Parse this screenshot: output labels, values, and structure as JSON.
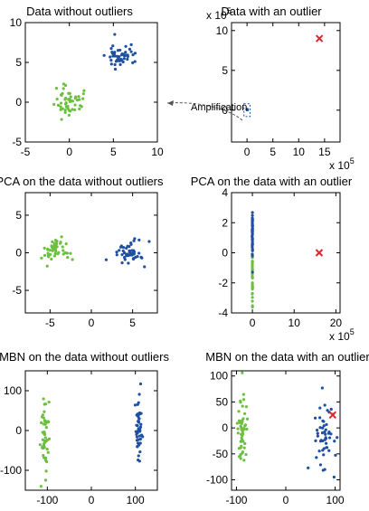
{
  "colors": {
    "green": "#6cbf3f",
    "blue": "#1f4fa0",
    "red": "#e0262c"
  },
  "annotation": {
    "text": "Amplification"
  },
  "chart_data": [
    {
      "type": "scatter",
      "title": "Data without outliers",
      "xlim": [
        -5,
        10
      ],
      "ylim": [
        -5,
        10
      ],
      "xticks": [
        -5,
        0,
        5,
        10
      ],
      "yticks": [
        -5,
        0,
        5,
        10
      ],
      "xtick_labels": [
        "-5",
        "0",
        "5",
        "10"
      ],
      "ytick_labels": [
        "-5",
        "0",
        "5",
        "10"
      ],
      "series": [
        {
          "color": "green",
          "cx": 0,
          "cy": 0,
          "sx": 0.8,
          "sy": 0.9,
          "n": 50
        },
        {
          "color": "blue",
          "cx": 5.8,
          "cy": 5.8,
          "sx": 0.8,
          "sy": 0.9,
          "n": 50
        }
      ]
    },
    {
      "type": "scatter",
      "title": "Data with an outlier",
      "x_exponent": "x 10",
      "x_exponent_power": "5",
      "y_exponent": "x 10",
      "y_exponent_power": "5",
      "xlim": [
        -3,
        18
      ],
      "ylim": [
        -4,
        11
      ],
      "xticks": [
        0,
        5,
        10,
        15
      ],
      "yticks": [
        0,
        5,
        10
      ],
      "xtick_labels": [
        "0",
        "5",
        "10",
        "15"
      ],
      "ytick_labels": [
        "0",
        "5",
        "10"
      ],
      "series": [
        {
          "color": "blue",
          "cx": 0.05,
          "cy": 0.05,
          "sx": 0.03,
          "sy": 0.03,
          "n": 8
        }
      ],
      "outlier": {
        "x": 14,
        "y": 9
      },
      "inset_box": {
        "x": [
          -0.6,
          0.6
        ],
        "y": [
          -0.8,
          0.8
        ]
      }
    },
    {
      "type": "scatter",
      "title": "PCA on the data without outliers",
      "xlim": [
        -8,
        8
      ],
      "ylim": [
        -8,
        8
      ],
      "xticks": [
        -5,
        0,
        5
      ],
      "yticks": [
        -5,
        0,
        5
      ],
      "xtick_labels": [
        "-5",
        "0",
        "5"
      ],
      "ytick_labels": [
        "-5",
        "0",
        "5"
      ],
      "series": [
        {
          "color": "green",
          "cx": -4.2,
          "cy": 0,
          "sx": 0.9,
          "sy": 0.9,
          "n": 50
        },
        {
          "color": "blue",
          "cx": 4.5,
          "cy": 0,
          "sx": 0.9,
          "sy": 0.9,
          "n": 50
        }
      ]
    },
    {
      "type": "scatter",
      "title": "PCA on the data with an outlier",
      "x_exponent": "x 10",
      "x_exponent_power": "5",
      "xlim": [
        -5,
        21
      ],
      "ylim": [
        -4,
        4
      ],
      "xticks": [
        0,
        10,
        20
      ],
      "yticks": [
        -4,
        -2,
        0,
        2,
        4
      ],
      "xtick_labels": [
        "0",
        "10",
        "20"
      ],
      "ytick_labels": [
        "-4",
        "-2",
        "0",
        "2",
        "4"
      ],
      "series": [
        {
          "color": "green",
          "cx": 0,
          "cy": -1.6,
          "sx": 0.02,
          "sy": 0.9,
          "n": 30
        },
        {
          "color": "blue",
          "cx": 0,
          "cy": 1.2,
          "sx": 0.02,
          "sy": 0.9,
          "n": 50
        }
      ],
      "outlier": {
        "x": 16,
        "y": 0
      }
    },
    {
      "type": "scatter",
      "title": "MBN on the data without outliers",
      "xlim": [
        -150,
        150
      ],
      "ylim": [
        -150,
        150
      ],
      "xticks": [
        -100,
        0,
        100
      ],
      "yticks": [
        -100,
        0,
        100
      ],
      "xtick_labels": [
        "-100",
        "0",
        "100"
      ],
      "ytick_labels": [
        "-100",
        "0",
        "100"
      ],
      "series": [
        {
          "color": "green",
          "cx": -105,
          "cy": -10,
          "sx": 5,
          "sy": 45,
          "n": 50
        },
        {
          "color": "blue",
          "cx": 108,
          "cy": 0,
          "sx": 4,
          "sy": 40,
          "n": 50
        }
      ]
    },
    {
      "type": "scatter",
      "title": "MBN on the data with an outlier",
      "xlim": [
        -110,
        110
      ],
      "ylim": [
        -120,
        110
      ],
      "xticks": [
        -100,
        0,
        100
      ],
      "yticks": [
        -100,
        -50,
        0,
        50,
        100
      ],
      "xtick_labels": [
        "-100",
        "0",
        "100"
      ],
      "ytick_labels": [
        "-100",
        "-50",
        "0",
        "50",
        "100"
      ],
      "series": [
        {
          "color": "green",
          "cx": -88,
          "cy": -5,
          "sx": 5,
          "sy": 45,
          "n": 50
        },
        {
          "color": "blue",
          "cx": 80,
          "cy": -20,
          "sx": 12,
          "sy": 38,
          "n": 50
        }
      ],
      "outlier": {
        "x": 95,
        "y": 25
      }
    }
  ]
}
